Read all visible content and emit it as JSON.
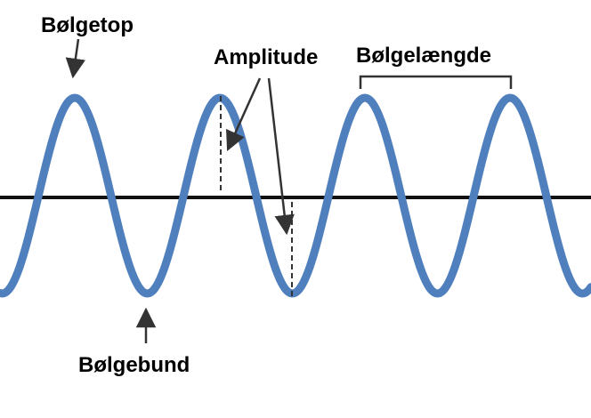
{
  "labels": {
    "crest": "Bølgetop",
    "trough": "Bølgebund",
    "amplitude": "Amplitude",
    "wavelength": "Bølgelængde"
  },
  "colors": {
    "wave": "#4f7fbd",
    "axis": "#111111",
    "annotation": "#333333",
    "text": "#000000"
  }
}
